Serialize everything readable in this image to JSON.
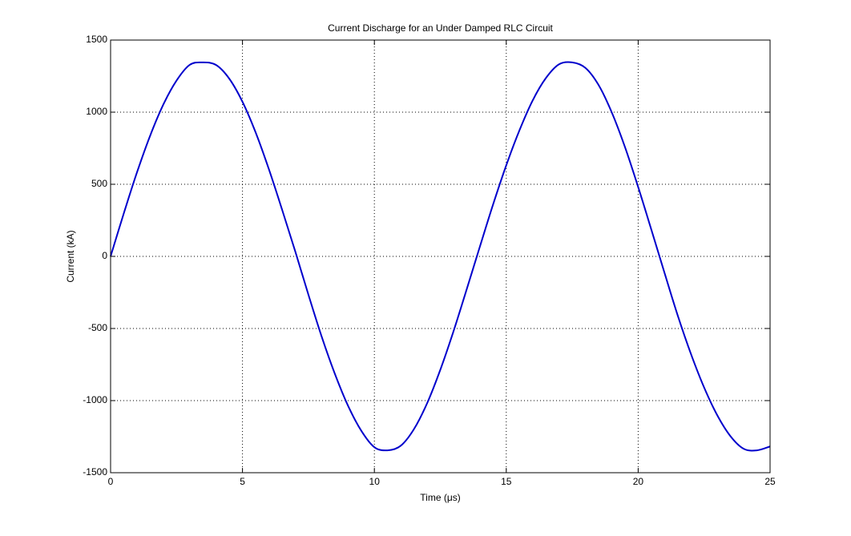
{
  "chart_data": {
    "type": "line",
    "title": "Current Discharge for an Under Damped RLC Circuit",
    "xlabel": "Time (μs)",
    "ylabel": "Current (kA)",
    "xlim": [
      0,
      25
    ],
    "ylim": [
      -1500,
      1500
    ],
    "xticks": [
      0,
      5,
      10,
      15,
      20,
      25
    ],
    "yticks": [
      -1500,
      -1000,
      -500,
      0,
      500,
      1000,
      1500
    ],
    "xtick_labels": [
      "0",
      "5",
      "10",
      "15",
      "20",
      "25"
    ],
    "ytick_labels": [
      "-1500",
      "-1000",
      "-500",
      "0",
      "500",
      "1000",
      "1500"
    ],
    "grid": true,
    "grid_style": "dotted",
    "legend": "none",
    "series": [
      {
        "color": "#0000cc",
        "x": [
          0,
          0.5,
          1,
          1.5,
          2,
          2.5,
          3,
          3.5,
          4,
          4.5,
          5,
          5.5,
          6,
          6.5,
          7,
          7.5,
          8,
          8.5,
          9,
          9.5,
          10,
          10.5,
          11,
          11.5,
          12,
          12.5,
          13,
          13.5,
          14,
          14.5,
          15,
          15.5,
          16,
          16.5,
          17,
          17.5,
          18,
          18.5,
          19,
          19.5,
          20,
          20.5,
          21,
          21.5,
          22,
          22.5,
          23,
          23.5,
          24,
          24.5,
          25
        ],
        "y": [
          0,
          298,
          582,
          837,
          1053,
          1219,
          1328,
          1345,
          1327,
          1232,
          1072,
          859,
          605,
          325,
          35,
          -266,
          -555,
          -813,
          -1035,
          -1208,
          -1323,
          -1345,
          -1313,
          -1198,
          -1018,
          -786,
          -519,
          -228,
          68,
          360,
          632,
          874,
          1081,
          1236,
          1332,
          1345,
          1307,
          1188,
          998,
          758,
          481,
          185,
          -115,
          -410,
          -676,
          -909,
          -1102,
          -1247,
          -1334,
          -1345,
          -1318
        ]
      }
    ]
  }
}
